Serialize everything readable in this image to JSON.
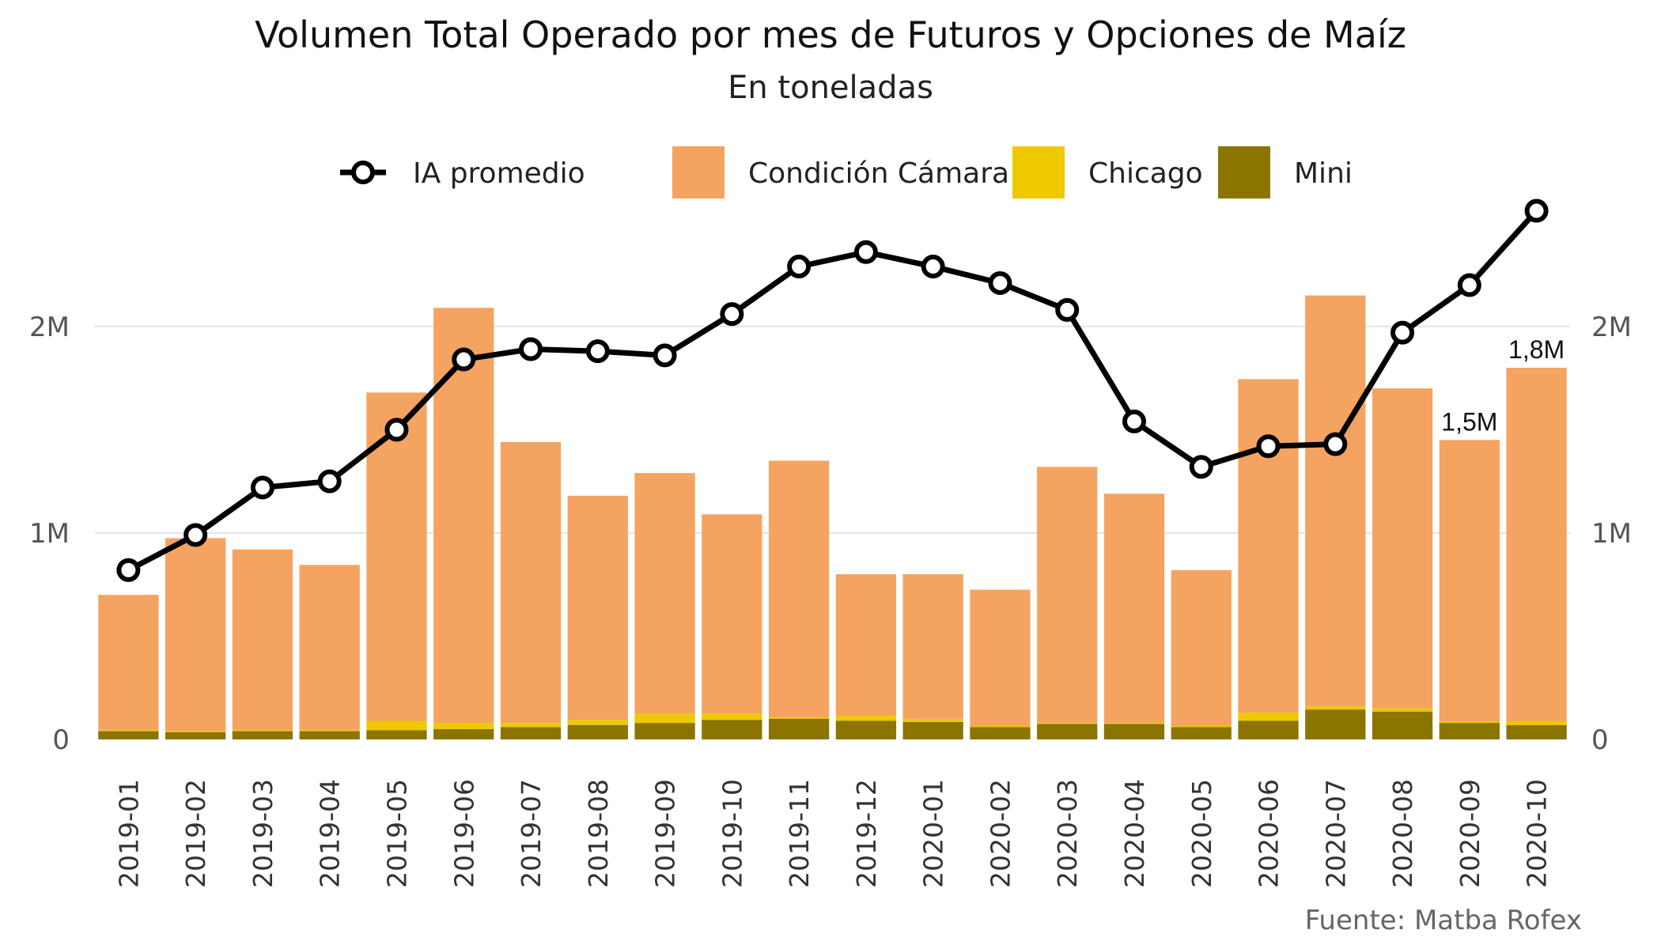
{
  "chart_data": {
    "type": "bar",
    "title": "Volumen Total Operado por mes de Futuros y Opciones de Maíz",
    "subtitle": "En toneladas",
    "caption": "Fuente: Matba Rofex",
    "stacked": true,
    "legend_position": "top",
    "grid": true,
    "categories": [
      "2019-01",
      "2019-02",
      "2019-03",
      "2019-04",
      "2019-05",
      "2019-06",
      "2019-07",
      "2019-08",
      "2019-09",
      "2019-10",
      "2019-11",
      "2019-12",
      "2020-01",
      "2020-02",
      "2020-03",
      "2020-04",
      "2020-05",
      "2020-06",
      "2020-07",
      "2020-08",
      "2020-09",
      "2020-10"
    ],
    "series": [
      {
        "name": "Mini",
        "type": "bar",
        "color": "#8B7500",
        "values": [
          40000,
          35000,
          40000,
          40000,
          45000,
          50000,
          60000,
          70000,
          80000,
          95000,
          100000,
          90000,
          85000,
          60000,
          75000,
          75000,
          60000,
          90000,
          145000,
          135000,
          80000,
          70000
        ]
      },
      {
        "name": "Chicago",
        "type": "bar",
        "color": "#EEC900",
        "values": [
          5000,
          5000,
          5000,
          5000,
          45000,
          30000,
          20000,
          25000,
          45000,
          30000,
          5000,
          25000,
          15000,
          5000,
          5000,
          5000,
          5000,
          40000,
          15000,
          15000,
          5000,
          15000
        ]
      },
      {
        "name": "Condición Cámara",
        "type": "bar",
        "color": "#F4A460",
        "values": [
          655000,
          935000,
          875000,
          800000,
          1590000,
          2010000,
          1360000,
          1085000,
          1165000,
          965000,
          1245000,
          685000,
          700000,
          660000,
          1240000,
          1110000,
          755000,
          1615000,
          1990000,
          1550000,
          1365000,
          1715000
        ]
      },
      {
        "name": "IA promedio",
        "type": "line",
        "color": "#000000",
        "values": [
          820000,
          990000,
          1220000,
          1250000,
          1500000,
          1840000,
          1890000,
          1880000,
          1860000,
          2060000,
          2290000,
          2360000,
          2290000,
          2210000,
          2080000,
          1540000,
          1320000,
          1420000,
          1430000,
          1970000,
          2200000,
          2560000
        ]
      }
    ],
    "data_labels": [
      {
        "category": "2020-09",
        "text": "1,5M"
      },
      {
        "category": "2020-10",
        "text": "1,8M"
      }
    ],
    "ylim": [
      0,
      2700000
    ],
    "yticks": [
      {
        "value": 0,
        "label": "0"
      },
      {
        "value": 1000000,
        "label": "1M"
      },
      {
        "value": 2000000,
        "label": "2M"
      }
    ],
    "xlabel": "",
    "ylabel": ""
  }
}
